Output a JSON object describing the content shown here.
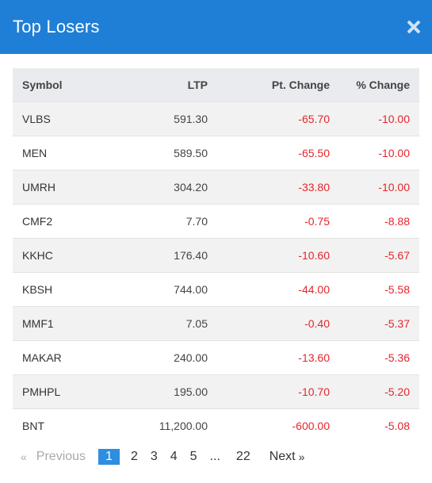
{
  "modal": {
    "title": "Top Losers",
    "close_icon": "close-icon"
  },
  "table": {
    "headers": {
      "symbol": "Symbol",
      "ltp": "LTP",
      "pt_change": "Pt. Change",
      "pct_change": "% Change"
    },
    "rows": [
      {
        "symbol": "VLBS",
        "ltp": "591.30",
        "pt_change": "-65.70",
        "pct_change": "-10.00"
      },
      {
        "symbol": "MEN",
        "ltp": "589.50",
        "pt_change": "-65.50",
        "pct_change": "-10.00"
      },
      {
        "symbol": "UMRH",
        "ltp": "304.20",
        "pt_change": "-33.80",
        "pct_change": "-10.00"
      },
      {
        "symbol": "CMF2",
        "ltp": "7.70",
        "pt_change": "-0.75",
        "pct_change": "-8.88"
      },
      {
        "symbol": "KKHC",
        "ltp": "176.40",
        "pt_change": "-10.60",
        "pct_change": "-5.67"
      },
      {
        "symbol": "KBSH",
        "ltp": "744.00",
        "pt_change": "-44.00",
        "pct_change": "-5.58"
      },
      {
        "symbol": "MMF1",
        "ltp": "7.05",
        "pt_change": "-0.40",
        "pct_change": "-5.37"
      },
      {
        "symbol": "MAKAR",
        "ltp": "240.00",
        "pt_change": "-13.60",
        "pct_change": "-5.36"
      },
      {
        "symbol": "PMHPL",
        "ltp": "195.00",
        "pt_change": "-10.70",
        "pct_change": "-5.20"
      },
      {
        "symbol": "BNT",
        "ltp": "11,200.00",
        "pt_change": "-600.00",
        "pct_change": "-5.08"
      }
    ]
  },
  "pagination": {
    "prev_arrow": "«",
    "prev_label": "Previous",
    "pages": [
      "1",
      "2",
      "3",
      "4",
      "5",
      "...",
      "22"
    ],
    "active_page": "1",
    "next_label": "Next",
    "next_arrow": "»"
  },
  "colors": {
    "header_bg": "#1f7fd6",
    "negative": "#e5262b",
    "active_page": "#2e8ee0"
  }
}
